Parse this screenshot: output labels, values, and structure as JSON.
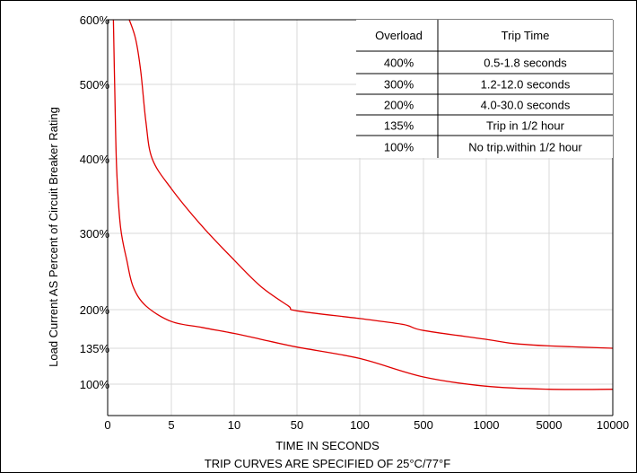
{
  "chart_data": {
    "type": "line",
    "title": "",
    "xlabel": "TIME IN SECONDS",
    "ylabel": "Load Current AS Percent of Circuit Breaker Rating",
    "caption": "TRIP CURVES ARE SPECIFIED OF 25°C/77°F",
    "x_ticks": [
      "0",
      "5",
      "10",
      "50",
      "100",
      "500",
      "1000",
      "5000",
      "10000"
    ],
    "y_ticks": [
      "600%",
      "500%",
      "400%",
      "300%",
      "200%",
      "135%",
      "100%"
    ],
    "y_tick_values": [
      600,
      500,
      400,
      300,
      200,
      135,
      100
    ],
    "grid": true,
    "line_color": "#e00000",
    "series": [
      {
        "x": [
          1.7,
          2.2,
          2.6,
          3.0,
          3.5,
          5,
          7,
          10,
          20,
          40,
          50,
          100,
          300,
          500,
          1000,
          2000,
          5000,
          10000
        ],
        "y": [
          600,
          570,
          520,
          450,
          400,
          360,
          310,
          265,
          230,
          205,
          198,
          185,
          175,
          165,
          150,
          143,
          139,
          135
        ]
      },
      {
        "x": [
          0.45,
          0.55,
          0.7,
          1.0,
          1.5,
          2.0,
          3.0,
          5,
          7,
          10,
          20,
          50,
          100,
          500,
          1000,
          5000,
          10000
        ],
        "y": [
          600,
          500,
          390,
          310,
          265,
          230,
          205,
          180,
          170,
          160,
          150,
          137,
          125,
          107,
          98,
          95,
          95
        ]
      }
    ]
  },
  "table": {
    "headers": [
      "Overload",
      "Trip Time"
    ],
    "rows": [
      [
        "400%",
        "0.5-1.8 seconds"
      ],
      [
        "300%",
        "1.2-12.0 seconds"
      ],
      [
        "200%",
        "4.0-30.0 seconds"
      ],
      [
        "135%",
        "Trip in 1/2 hour"
      ],
      [
        "100%",
        "No trip.within 1/2 hour"
      ]
    ]
  }
}
